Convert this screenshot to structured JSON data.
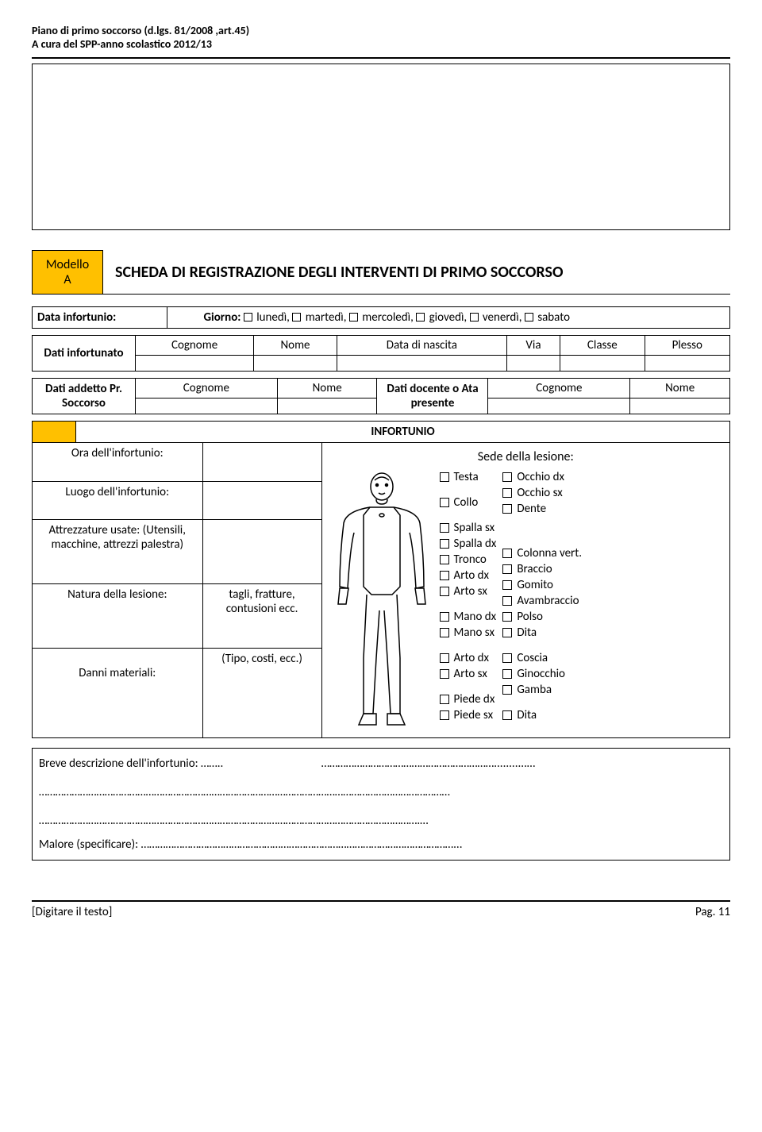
{
  "header": {
    "line1": "Piano di primo soccorso (d.lgs. 81/2008 ,art.45)",
    "line2": "A cura del SPP-anno scolastico 2012/13"
  },
  "modello": {
    "label": "Modello",
    "letter": "A"
  },
  "title": "SCHEDA DI REGISTRAZIONE DEGLI INTERVENTI DI PRIMO SOCCORSO",
  "dataInfortunio": {
    "label": "Data infortunio:",
    "giorno_prefix": "Giorno:",
    "days": [
      "lunedì,",
      "martedì,",
      "mercoledì,",
      "giovedì,",
      "venerdì,",
      "sabato"
    ]
  },
  "tableInfortunato": {
    "rowLabel": "Dati infortunato",
    "cols": [
      "Cognome",
      "Nome",
      "Data di nascita",
      "Via",
      "Classe",
      "Plesso"
    ]
  },
  "tableAddetto": {
    "leftLabel": "Dati addetto Pr. Soccorso",
    "cols1": [
      "Cognome",
      "Nome"
    ],
    "midLabel": "Dati docente o Ata presente",
    "cols2": [
      "Cognome",
      "Nome"
    ]
  },
  "infortunio": {
    "header": "INFORTUNIO",
    "rows": {
      "ora": "Ora dell'infortunio:",
      "luogo": "Luogo dell'infortunio:",
      "attrezzature": "Attrezzature usate: (Utensili, macchine, attrezzi palestra)",
      "natura": "Natura della lesione:",
      "natura_val": "tagli, fratture, contusioni ecc.",
      "danni": "Danni materiali:",
      "danni_val": "(Tipo, costi, ecc.)"
    },
    "sede_title": "Sede della lesione:",
    "body_parts_col1": [
      "Testa",
      "",
      "Collo",
      "",
      "Spalla sx",
      "Spalla dx",
      "Tronco",
      "Arto dx",
      "Arto sx",
      "",
      "Mano dx",
      "Mano sx",
      "",
      "Arto dx",
      "Arto sx",
      "",
      "Piede dx",
      "Piede sx"
    ],
    "body_parts_col2": [
      "Occhio dx",
      "Occhio sx",
      "Dente",
      "",
      "",
      "",
      "Colonna vert.",
      "Braccio",
      "Gomito",
      "Avambraccio",
      "Polso",
      "Dita",
      "",
      "Coscia",
      "Ginocchio",
      "Gamba",
      "",
      "Dita"
    ]
  },
  "description": {
    "breve": "Breve descrizione dell'infortunio: ……..",
    "dots1": "………………………………………………………...........…",
    "line2": "……………………………………………………………………………………………………………………………………",
    "line3": "………………………………………………………………………………………………………………………….…",
    "malore": "Malore (specificare): ……………………………………………………………………………………………………..."
  },
  "footer": {
    "left": "[Digitare il testo]",
    "right": "Pag. 11"
  },
  "colors": {
    "yellow": "#ffc000",
    "black": "#000000",
    "white": "#ffffff"
  }
}
